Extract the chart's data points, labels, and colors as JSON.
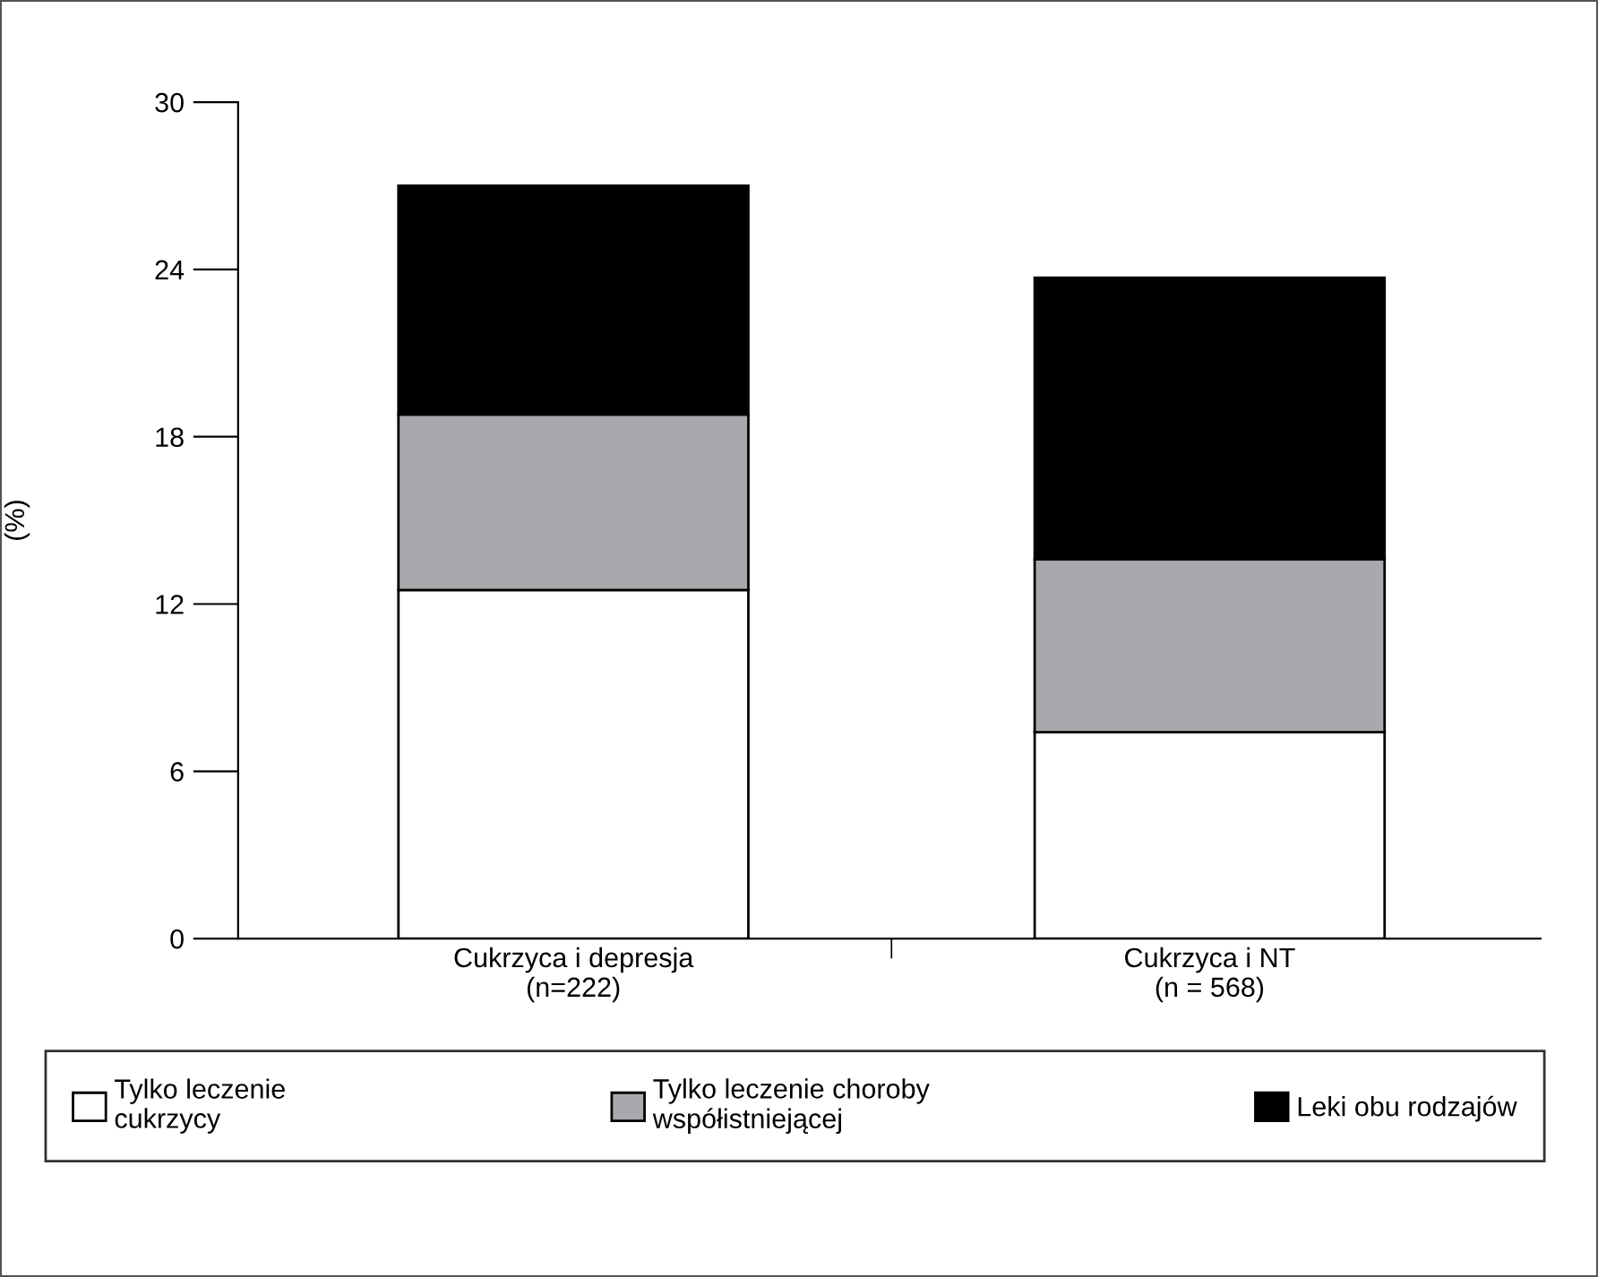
{
  "chart_data": {
    "type": "bar",
    "stacked": true,
    "ylabel": "(%)",
    "categories": [
      "Cukrzyca i depresja\n(n=222)",
      "Cukrzyca i NT\n(n = 568)"
    ],
    "series": [
      {
        "name": "Tylko leczenie\ncukrzycy",
        "color": "#ffffff",
        "values": [
          12.5,
          7.4
        ]
      },
      {
        "name": "Tylko leczenie choroby\nwspółistniejącej",
        "color": "#a7a9ac",
        "values": [
          6.3,
          6.2
        ]
      },
      {
        "name": "Leki obu rodzajów",
        "color": "#000000",
        "values": [
          8.2,
          10.1
        ]
      }
    ],
    "ylim": [
      0,
      30
    ],
    "yticks": [
      0,
      6,
      12,
      18,
      24,
      30
    ],
    "grid": false,
    "legend": "bottom"
  }
}
